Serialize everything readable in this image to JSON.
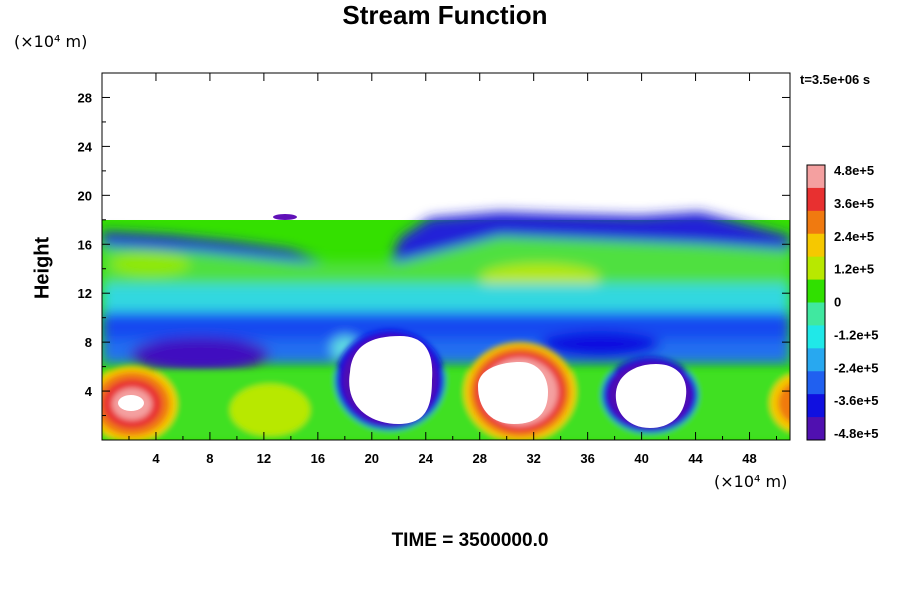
{
  "chart_data": {
    "type": "heatmap",
    "title": "Stream Function",
    "ylabel": "Height",
    "y_unit_label": "(×10⁴ m)",
    "x_unit_label": "(×10⁴ m)",
    "time_label": "t=3.5e+06 s",
    "footer": "TIME = 3500000.0",
    "xlim": [
      0,
      51
    ],
    "ylim": [
      0,
      30
    ],
    "xticks": [
      4,
      8,
      12,
      16,
      20,
      24,
      28,
      32,
      36,
      40,
      44,
      48
    ],
    "yticks": [
      4,
      8,
      12,
      16,
      20,
      24,
      28
    ],
    "colorbar": {
      "min": -480000,
      "max": 480000,
      "tick_values": [
        480000,
        360000,
        240000,
        120000,
        0,
        -120000,
        -240000,
        -360000,
        -480000
      ],
      "tick_labels": [
        "4.8e+5",
        "3.6e+5",
        "2.4e+5",
        "1.2e+5",
        "0",
        "-1.2e+5",
        "-2.4e+5",
        "-3.6e+5",
        "-4.8e+5"
      ],
      "colors": [
        "#f4a0a0",
        "#e83030",
        "#f07a10",
        "#f6c800",
        "#b8e800",
        "#30e000",
        "#40e8a0",
        "#20e8e8",
        "#28a8f0",
        "#2060f0",
        "#1010e0",
        "#5010b0"
      ]
    },
    "features": [
      {
        "kind": "cell",
        "value": "max",
        "x": 3,
        "y": 3
      },
      {
        "kind": "cell",
        "value": "min",
        "x": 22,
        "y": 4.5
      },
      {
        "kind": "cell",
        "value": "max",
        "x": 30.5,
        "y": 4.5
      },
      {
        "kind": "cell",
        "value": "min",
        "x": 40.5,
        "y": 3.5
      },
      {
        "kind": "cell",
        "value": "max",
        "x": 51,
        "y": 3
      }
    ]
  }
}
